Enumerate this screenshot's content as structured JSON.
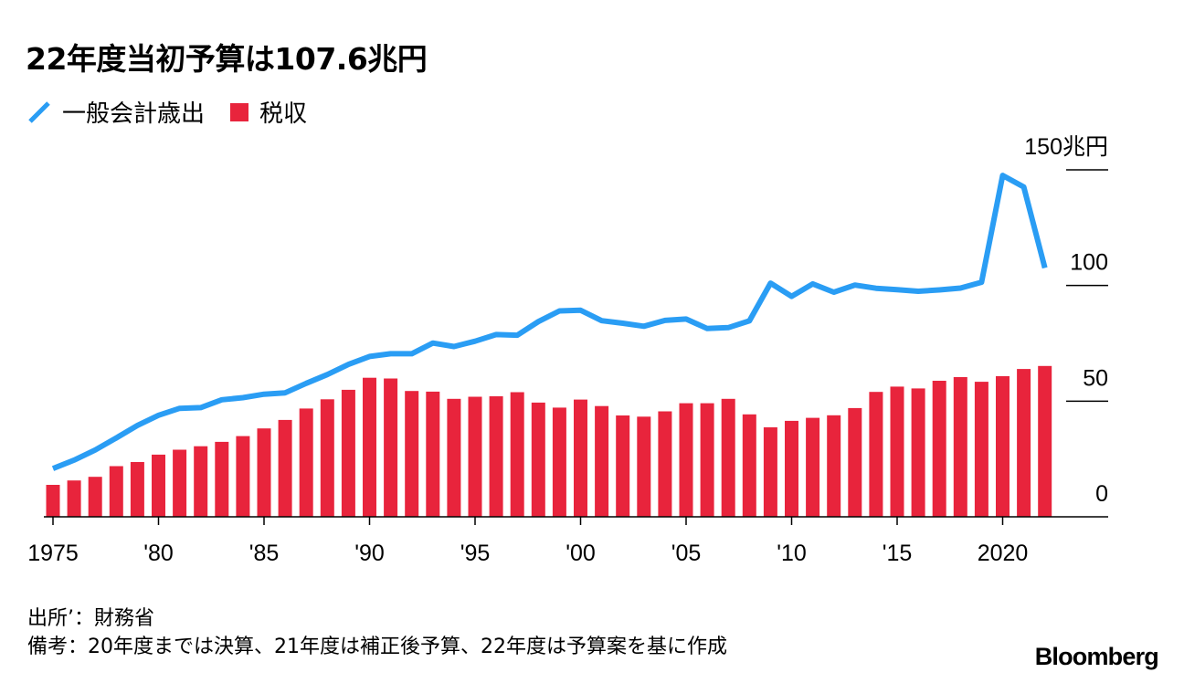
{
  "title": "22年度当初予算は107.6兆円",
  "legend": {
    "line_label": "一般会計歳出",
    "bar_label": "税収"
  },
  "colors": {
    "line": "#2a9df4",
    "bar": "#e8243c",
    "axis": "#000000"
  },
  "footer": {
    "source": "出所’：財務省",
    "note": "備考：20年度までは決算、21年度は補正後予算、22年度は予算案を基に作成"
  },
  "brand": "Bloomberg",
  "chart_data": {
    "type": "bar+line",
    "title": "22年度当初予算は107.6兆円",
    "ylim": [
      0,
      150
    ],
    "yticks": [
      {
        "value": 0,
        "label": "0"
      },
      {
        "value": 50,
        "label": "50"
      },
      {
        "value": 100,
        "label": "100"
      },
      {
        "value": 150,
        "label": "150兆円"
      }
    ],
    "xticks": [
      {
        "year": 1975,
        "label": "1975"
      },
      {
        "year": 1980,
        "label": "'80"
      },
      {
        "year": 1985,
        "label": "'85"
      },
      {
        "year": 1990,
        "label": "'90"
      },
      {
        "year": 1995,
        "label": "'95"
      },
      {
        "year": 2000,
        "label": "'00"
      },
      {
        "year": 2005,
        "label": "'05"
      },
      {
        "year": 2010,
        "label": "'10"
      },
      {
        "year": 2015,
        "label": "'15"
      },
      {
        "year": 2020,
        "label": "2020"
      }
    ],
    "years": [
      1975,
      1976,
      1977,
      1978,
      1979,
      1980,
      1981,
      1982,
      1983,
      1984,
      1985,
      1986,
      1987,
      1988,
      1989,
      1990,
      1991,
      1992,
      1993,
      1994,
      1995,
      1996,
      1997,
      1998,
      1999,
      2000,
      2001,
      2002,
      2003,
      2004,
      2005,
      2006,
      2007,
      2008,
      2009,
      2010,
      2011,
      2012,
      2013,
      2014,
      2015,
      2016,
      2017,
      2018,
      2019,
      2020,
      2021,
      2022
    ],
    "series": [
      {
        "name": "一般会計歳出",
        "type": "line",
        "values": [
          20.9,
          24.5,
          28.9,
          34.1,
          39.5,
          43.9,
          46.9,
          47.2,
          50.6,
          51.5,
          53.0,
          53.6,
          57.7,
          61.5,
          65.9,
          69.3,
          70.5,
          70.5,
          75.1,
          73.6,
          75.9,
          78.8,
          78.5,
          84.4,
          89.0,
          89.3,
          84.8,
          83.7,
          82.4,
          84.9,
          85.5,
          81.4,
          81.8,
          84.7,
          101.0,
          95.3,
          100.7,
          97.1,
          100.2,
          98.8,
          98.2,
          97.5,
          98.1,
          98.9,
          101.4,
          147.6,
          142.6,
          107.6
        ]
      },
      {
        "name": "税収",
        "type": "bar",
        "values": [
          13.8,
          15.7,
          17.3,
          21.9,
          23.7,
          26.9,
          29.0,
          30.5,
          32.4,
          34.9,
          38.2,
          41.9,
          46.8,
          50.8,
          54.9,
          60.1,
          59.8,
          54.4,
          54.1,
          51.0,
          51.9,
          52.1,
          53.9,
          49.4,
          47.2,
          50.7,
          47.9,
          43.8,
          43.3,
          45.6,
          49.1,
          49.1,
          51.0,
          44.3,
          38.7,
          41.5,
          42.8,
          43.9,
          47.0,
          54.0,
          56.3,
          55.5,
          58.8,
          60.4,
          58.4,
          60.8,
          63.9,
          65.2
        ]
      }
    ]
  }
}
